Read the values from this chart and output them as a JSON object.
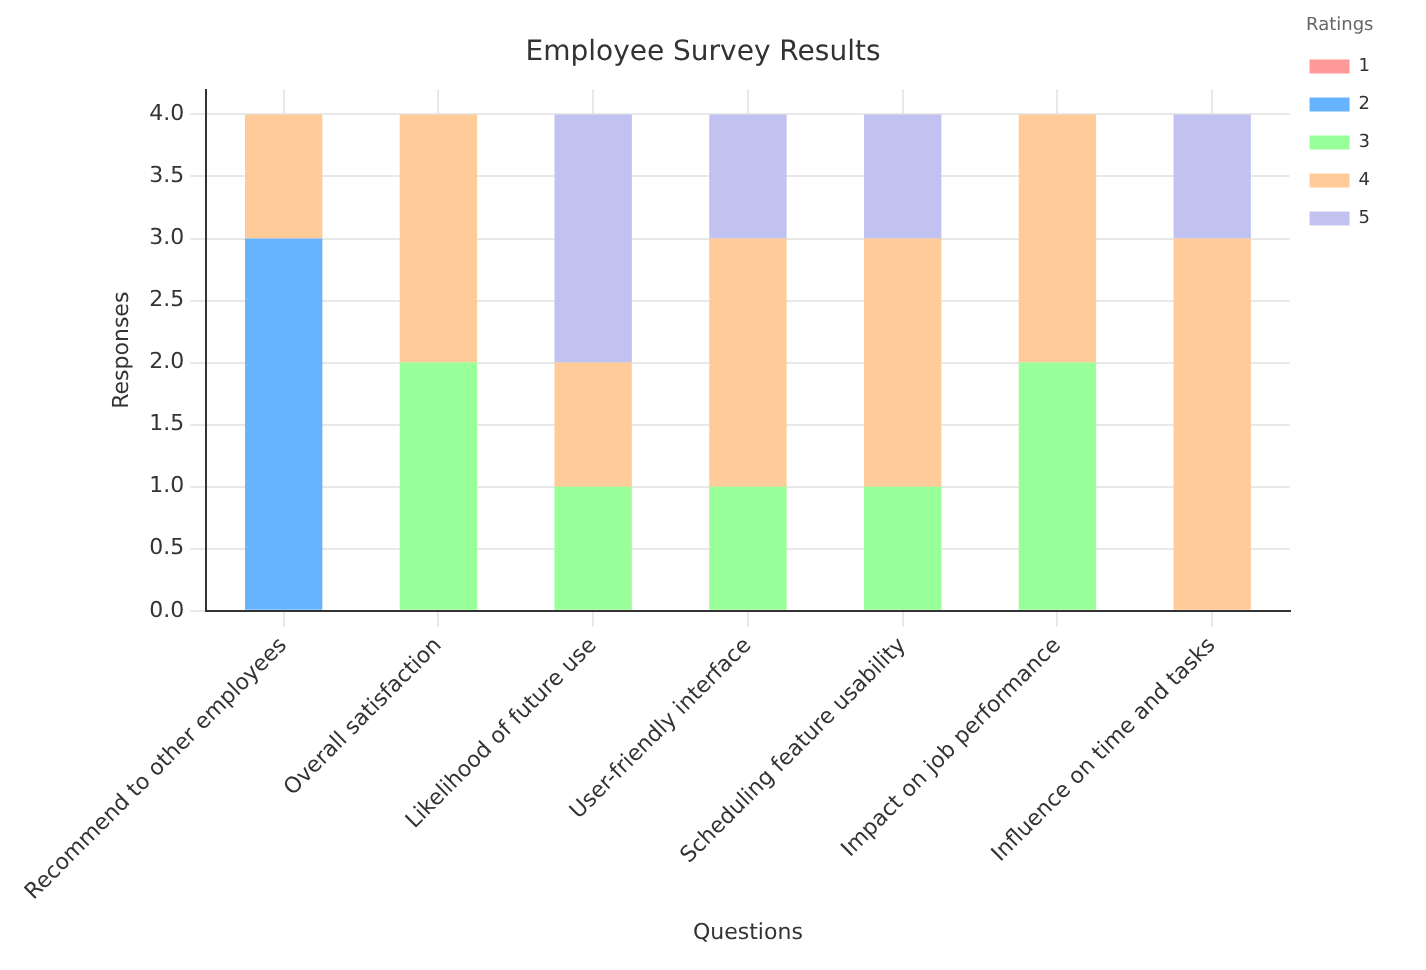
{
  "chart_data": {
    "type": "bar",
    "title": "Employee Survey Results",
    "xlabel": "Questions",
    "ylabel": "Responses",
    "legend_title": "Ratings",
    "categories": [
      "Recommend to other employees",
      "Overall satisfaction",
      "Likelihood of future use",
      "User-friendly interface",
      "Scheduling feature usability",
      "Impact on job performance",
      "Influence on time and tasks"
    ],
    "series": [
      {
        "name": "1",
        "color": "#ff9999",
        "values": [
          0,
          0,
          0,
          0,
          0,
          0,
          0
        ]
      },
      {
        "name": "2",
        "color": "#66b3ff",
        "values": [
          3,
          0,
          0,
          0,
          0,
          0,
          0
        ]
      },
      {
        "name": "3",
        "color": "#99ff99",
        "values": [
          0,
          2,
          1,
          1,
          1,
          2,
          0
        ]
      },
      {
        "name": "4",
        "color": "#ffcc99",
        "values": [
          1,
          2,
          1,
          2,
          2,
          2,
          3
        ]
      },
      {
        "name": "5",
        "color": "#c2c2f0",
        "values": [
          0,
          0,
          2,
          1,
          1,
          0,
          1
        ]
      }
    ],
    "stacked": true,
    "ylim": [
      0,
      4.2
    ],
    "yticks": [
      {
        "value": 0,
        "label": "0.0"
      },
      0.5,
      {
        "value": 1,
        "label": "1.0"
      },
      1.5,
      {
        "value": 2,
        "label": "2.0"
      },
      2.5,
      {
        "value": 3,
        "label": "3.0"
      },
      3.5,
      {
        "value": 4,
        "label": "4.0"
      }
    ],
    "grid": true,
    "legend": "top right"
  }
}
